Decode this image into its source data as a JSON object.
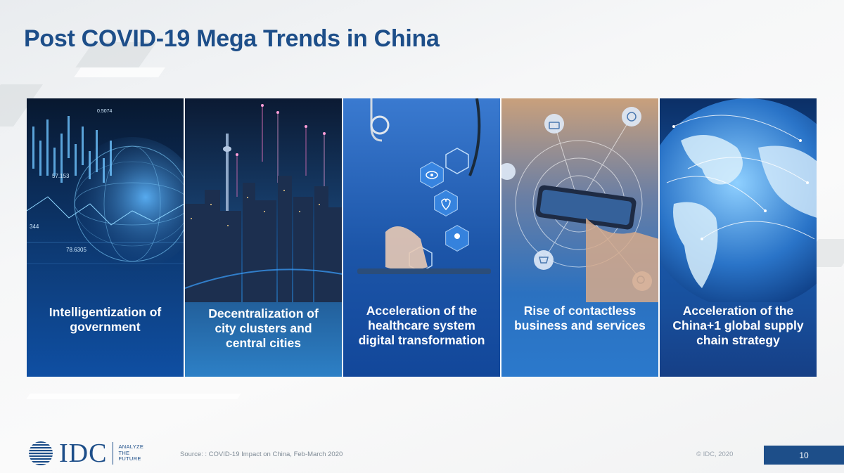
{
  "slide": {
    "title": "Post COVID-19 Mega Trends in China"
  },
  "trends": [
    {
      "label": "Intelligentization of government"
    },
    {
      "label": "Decentralization of city clusters and central cities"
    },
    {
      "label": "Acceleration of the healthcare system digital transformation"
    },
    {
      "label": "Rise of contactless business and services"
    },
    {
      "label": "Acceleration of the China+1 global supply chain strategy"
    }
  ],
  "panel_art_text": {
    "chart_number_a": "57.153",
    "chart_number_b": "344",
    "chart_number_c": "78.6305",
    "chart_number_d": "0.5074"
  },
  "footer": {
    "source": "Source: : COVID-19 Impact on China, Feb-March 2020",
    "copyright": "© IDC, 2020",
    "page_number": "10"
  },
  "logo": {
    "name": "IDC",
    "tagline_1": "ANALYZE",
    "tagline_2": "THE",
    "tagline_3": "FUTURE"
  },
  "colors": {
    "brand_blue": "#1d4e89",
    "caption_text": "#ffffff"
  }
}
